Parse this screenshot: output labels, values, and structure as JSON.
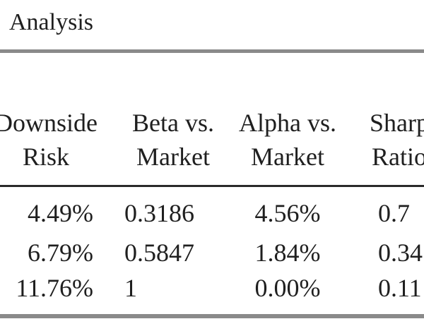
{
  "title": "Analysis",
  "table": {
    "headers": [
      {
        "line1": "Downside",
        "line2": "Risk"
      },
      {
        "line1": "Beta vs.",
        "line2": "Market"
      },
      {
        "line1": "Alpha vs.",
        "line2": "Market"
      },
      {
        "line1": "Sharp",
        "line2": "Ratio"
      }
    ],
    "rows": [
      [
        "4.49%",
        "0.3186",
        "4.56%",
        "0.7"
      ],
      [
        "6.79%",
        "0.5847",
        "1.84%",
        "0.34"
      ],
      [
        "11.76%",
        "1",
        "0.00%",
        "0.11"
      ]
    ]
  }
}
